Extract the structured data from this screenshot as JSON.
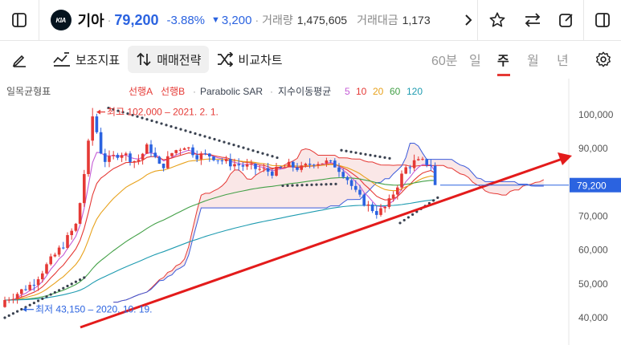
{
  "header": {
    "logo_text": "KIA",
    "name": "기아",
    "price": "79,200",
    "change_pct": "-3.88%",
    "change_abs": "3,200",
    "volume_label": "거래량",
    "volume": "1,475,605",
    "amount_label": "거래대금",
    "amount": "1,173"
  },
  "toolbar": {
    "indicators_label": "보조지표",
    "trading_label": "매매전략",
    "compare_label": "비교차트",
    "periods": [
      "60분",
      "일",
      "주",
      "월",
      "년"
    ],
    "active_period": "주"
  },
  "chart": {
    "ichimoku_label": "일목균형표",
    "span_a_label": "선행A",
    "span_b_label": "선행B",
    "sar_label": "Parabolic SAR",
    "ma_label": "지수이동평균",
    "ma_periods": [
      "5",
      "10",
      "20",
      "60",
      "120"
    ],
    "ma_colors": [
      "#c45cd6",
      "#e53935",
      "#e8a21c",
      "#43a047",
      "#1e9bb0"
    ],
    "high_annotation": "최고 102,000 – 2021. 2. 1.",
    "low_annotation": "최저 43,150 – 2020. 10. 19.",
    "current_price_tag": "79,200"
  },
  "chart_data": {
    "type": "candlestick",
    "y_axis_ticks": [
      "100,000",
      "90,000",
      "80,000",
      "70,000",
      "60,000",
      "50,000",
      "40,000"
    ],
    "ylim": [
      36000,
      104000
    ],
    "high": 102000,
    "low": 43150,
    "last_close": 79200,
    "colors": {
      "up": "#e53935",
      "down": "#2b63e0",
      "trend": "#e31b1b",
      "sar": "#3a4250",
      "cloud": "#f6d3d3"
    }
  }
}
